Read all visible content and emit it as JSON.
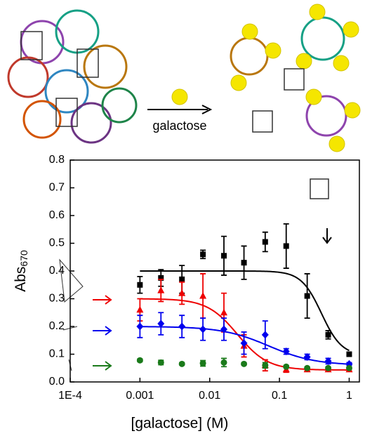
{
  "chart_data": {
    "type": "scatter",
    "x_label": "[galactose] (M)",
    "y_label": {
      "text": "Abs",
      "subscript": "670"
    },
    "annotation": "galactose",
    "log_x": true,
    "xlim": [
      0.0001,
      1.4
    ],
    "ylim": [
      0,
      0.8
    ],
    "xticks": [
      {
        "value": 0.0001,
        "label": "1E-4"
      },
      0.001,
      0.01,
      0.1,
      1
    ],
    "yticks": [
      {
        "value": 0,
        "label": "0.0"
      },
      0.1,
      0.2,
      0.3,
      0.4,
      0.5,
      0.6,
      0.7,
      0.8
    ],
    "x": [
      0.001,
      0.002,
      0.004,
      0.008,
      0.016,
      0.031,
      0.0625,
      0.125,
      0.25,
      0.5,
      1
    ],
    "series": [
      {
        "color": "#000000",
        "marker": "square",
        "values": [
          0.35,
          0.375,
          0.37,
          0.46,
          0.455,
          0.43,
          0.505,
          0.49,
          0.31,
          0.17,
          0.1
        ],
        "errors": [
          0.03,
          0.03,
          0.05,
          0.015,
          0.07,
          0.06,
          0.035,
          0.08,
          0.08,
          0.015,
          0.005
        ],
        "fit": {
          "top": 0.4,
          "bottom": 0.095,
          "ec50": 0.4,
          "hill": 3
        }
      },
      {
        "color": "#ee0000",
        "marker": "triangle",
        "values": [
          0.26,
          0.33,
          0.32,
          0.31,
          0.25,
          0.13,
          0.06,
          0.045,
          0.045,
          0.045,
          0.045
        ],
        "errors": [
          0.04,
          0.04,
          0.04,
          0.08,
          0.07,
          0.04,
          0.02,
          0.01,
          0.005,
          0.005,
          0.005
        ],
        "fit": {
          "top": 0.3,
          "bottom": 0.043,
          "ec50": 0.025,
          "hill": 2
        }
      },
      {
        "color": "#0000ee",
        "marker": "diamond",
        "values": [
          0.2,
          0.21,
          0.2,
          0.19,
          0.19,
          0.14,
          0.17,
          0.11,
          0.09,
          0.075,
          0.065
        ],
        "errors": [
          0.04,
          0.04,
          0.04,
          0.04,
          0.04,
          0.04,
          0.05,
          0.01,
          0.01,
          0.01,
          0.005
        ],
        "fit": {
          "top": 0.2,
          "bottom": 0.06,
          "ec50": 0.07,
          "hill": 1.3
        }
      },
      {
        "color": "#1a7a1a",
        "marker": "circle",
        "values": [
          0.078,
          0.07,
          0.065,
          0.067,
          0.07,
          0.065,
          0.06,
          0.055,
          0.05,
          0.05,
          0.05
        ],
        "errors": [
          0.005,
          0.008,
          0.004,
          0.01,
          0.015,
          0.004,
          0.01,
          0.004,
          0.004,
          0.004,
          0.004
        ]
      }
    ]
  }
}
